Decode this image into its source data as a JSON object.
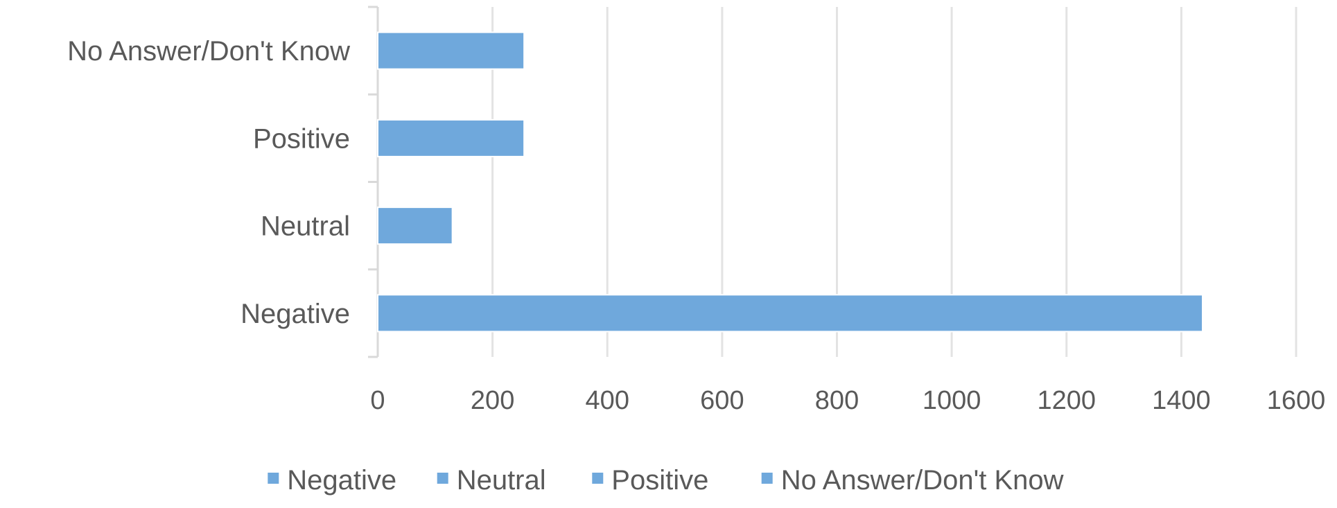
{
  "chart_data": {
    "type": "bar",
    "orientation": "horizontal",
    "categories": [
      "Negative",
      "Neutral",
      "Positive",
      "No Answer/Don't Know"
    ],
    "values": [
      1437,
      130,
      255,
      255
    ],
    "title": "",
    "xlabel": "",
    "ylabel": "",
    "xlim": [
      0,
      1600
    ],
    "x_ticks": [
      0,
      200,
      400,
      600,
      800,
      1000,
      1200,
      1400,
      1600
    ],
    "x_tick_labels": [
      "0",
      "200",
      "400",
      "600",
      "800",
      "1000",
      "1200",
      "1400",
      "1600"
    ],
    "grid": true,
    "legend_position": "bottom",
    "legend": [
      "Negative",
      "Neutral",
      "Positive",
      "No Answer/Don't Know"
    ],
    "bar_color": "#6fa8dc",
    "gridline_color": "#e3e3e3",
    "text_color": "#595959"
  }
}
